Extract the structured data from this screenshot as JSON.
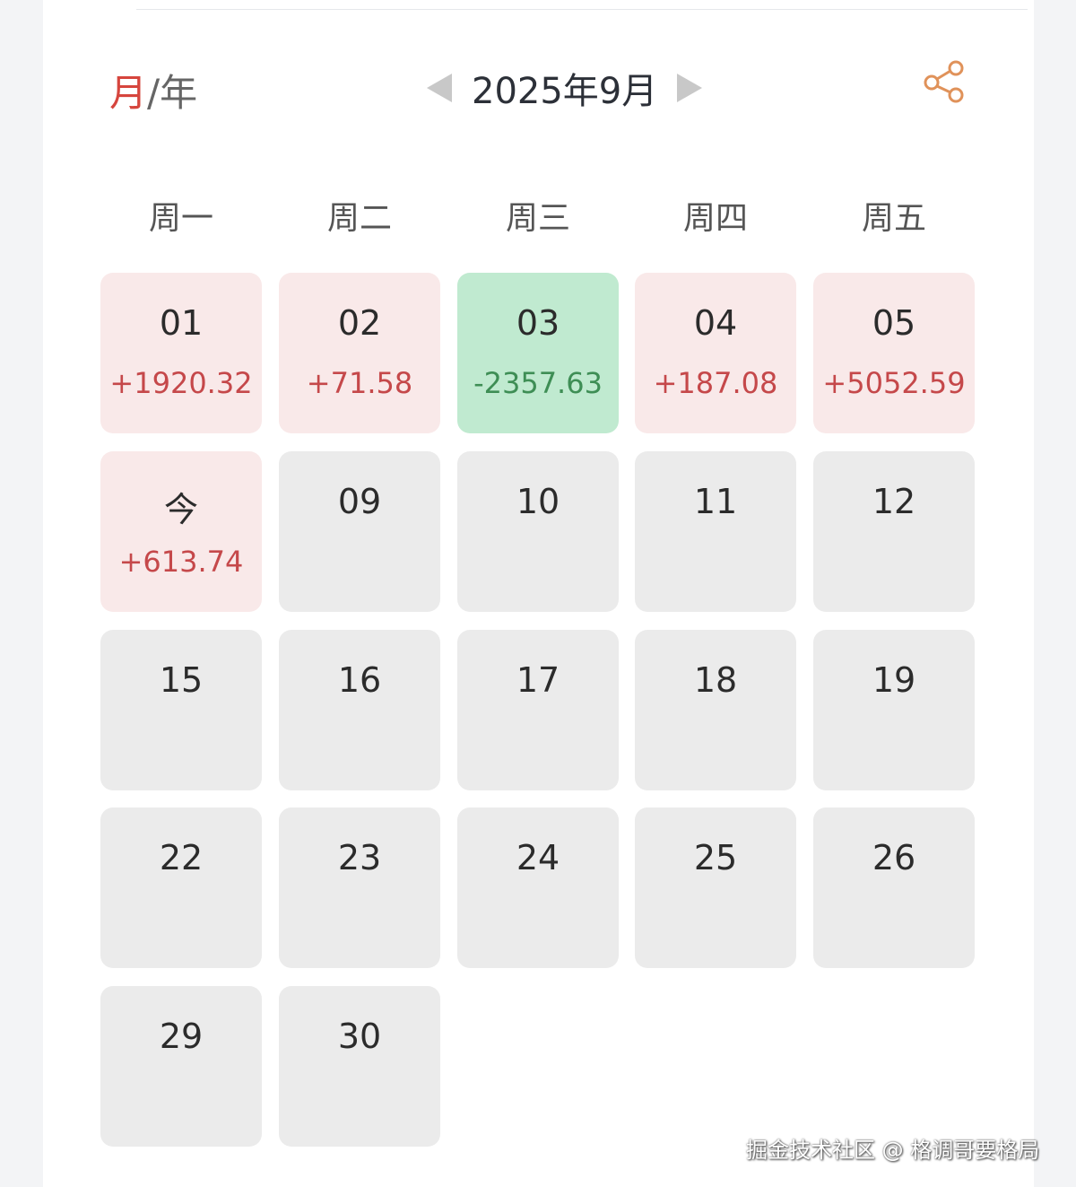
{
  "header": {
    "view_month": "月",
    "view_sep": "/",
    "view_year": "年",
    "title": "2025年9月",
    "accent_color": "#d6453d",
    "share_icon_color": "#e0925a"
  },
  "weekdays": [
    "周一",
    "周二",
    "周三",
    "周四",
    "周五"
  ],
  "days": [
    {
      "day": "01",
      "value": "+1920.32",
      "status": "up"
    },
    {
      "day": "02",
      "value": "+71.58",
      "status": "up"
    },
    {
      "day": "03",
      "value": "-2357.63",
      "status": "down"
    },
    {
      "day": "04",
      "value": "+187.08",
      "status": "up"
    },
    {
      "day": "05",
      "value": "+5052.59",
      "status": "up"
    },
    {
      "day": "今",
      "value": "+613.74",
      "status": "up"
    },
    {
      "day": "09",
      "value": "",
      "status": "none"
    },
    {
      "day": "10",
      "value": "",
      "status": "none"
    },
    {
      "day": "11",
      "value": "",
      "status": "none"
    },
    {
      "day": "12",
      "value": "",
      "status": "none"
    },
    {
      "day": "15",
      "value": "",
      "status": "none"
    },
    {
      "day": "16",
      "value": "",
      "status": "none"
    },
    {
      "day": "17",
      "value": "",
      "status": "none"
    },
    {
      "day": "18",
      "value": "",
      "status": "none"
    },
    {
      "day": "19",
      "value": "",
      "status": "none"
    },
    {
      "day": "22",
      "value": "",
      "status": "none"
    },
    {
      "day": "23",
      "value": "",
      "status": "none"
    },
    {
      "day": "24",
      "value": "",
      "status": "none"
    },
    {
      "day": "25",
      "value": "",
      "status": "none"
    },
    {
      "day": "26",
      "value": "",
      "status": "none"
    },
    {
      "day": "29",
      "value": "",
      "status": "none"
    },
    {
      "day": "30",
      "value": "",
      "status": "none"
    }
  ],
  "watermark": "掘金技术社区 @ 格调哥要格局"
}
